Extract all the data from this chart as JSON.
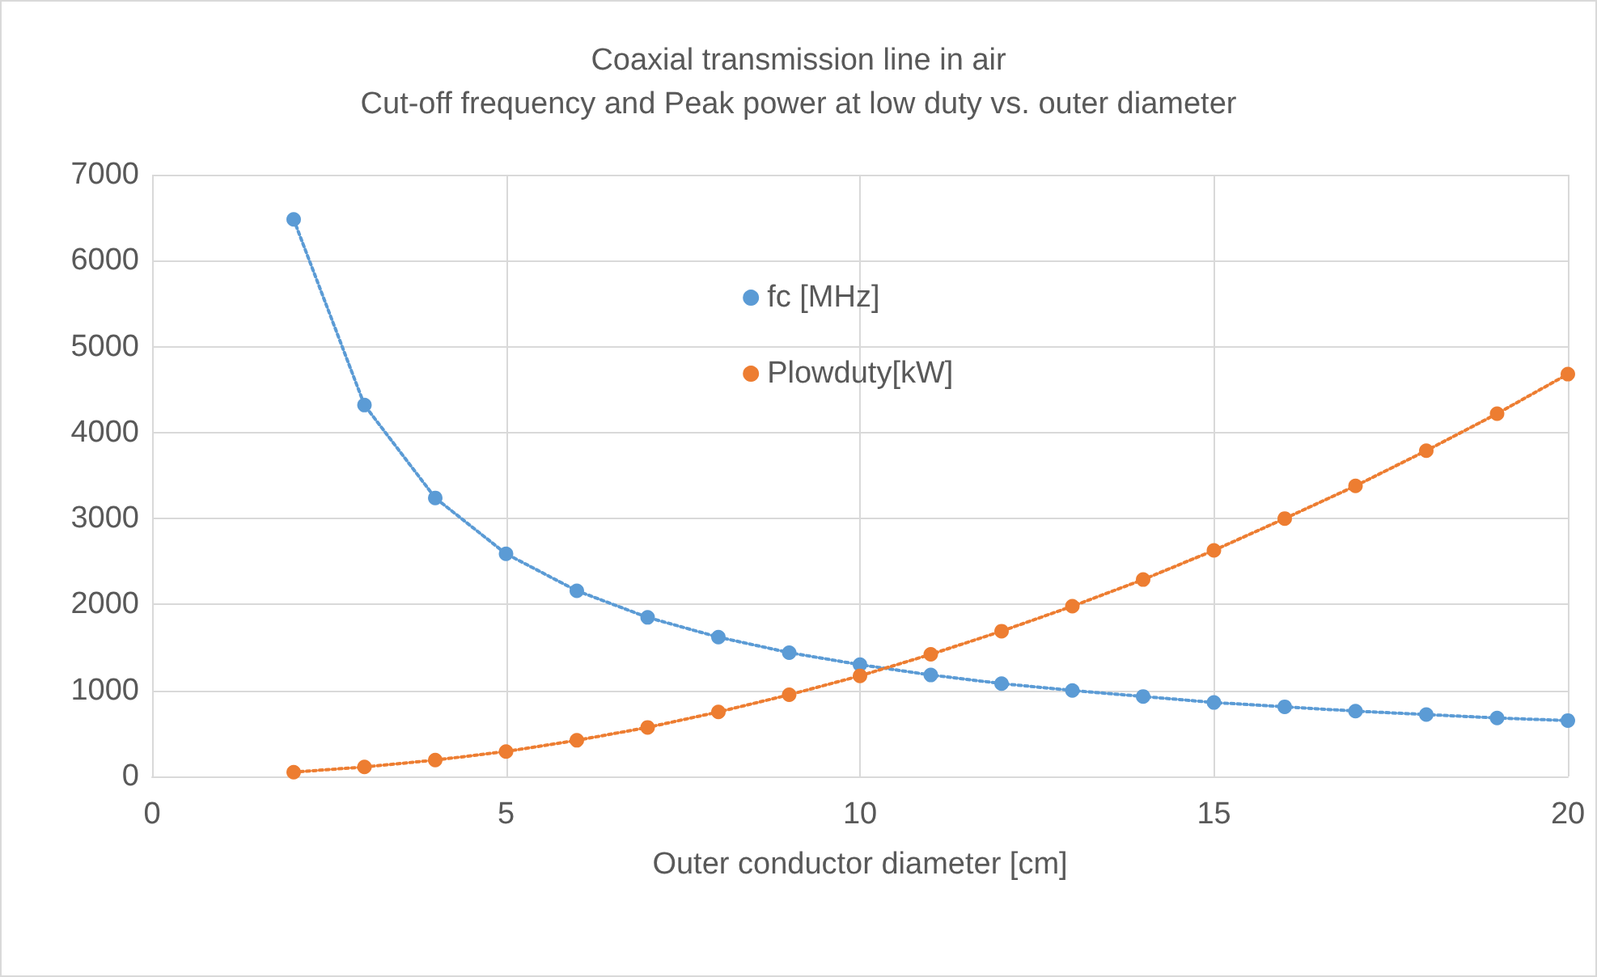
{
  "chart_data": {
    "type": "line",
    "title": "Coaxial transmission line in air",
    "subtitle": "Cut-off frequency and Peak power at low duty vs. outer diameter",
    "xlabel": "Outer conductor diameter [cm]",
    "x": [
      2,
      3,
      4,
      5,
      6,
      7,
      8,
      9,
      10,
      11,
      12,
      13,
      14,
      15,
      16,
      17,
      18,
      19,
      20
    ],
    "series": [
      {
        "name": "fc [MHz]",
        "color": "#5b9bd5",
        "values": [
          6480,
          4320,
          3240,
          2590,
          2160,
          1850,
          1620,
          1440,
          1300,
          1180,
          1080,
          1000,
          930,
          860,
          810,
          760,
          720,
          680,
          650
        ]
      },
      {
        "name": "Plowduty[kW]",
        "color": "#ed7d31",
        "values": [
          50,
          110,
          190,
          290,
          420,
          570,
          750,
          950,
          1170,
          1420,
          1690,
          1980,
          2290,
          2630,
          3000,
          3380,
          3790,
          4220,
          4680
        ]
      }
    ],
    "xlim": [
      0,
      20
    ],
    "xticks": [
      0,
      5,
      10,
      15,
      20
    ],
    "ylim": [
      0,
      7000
    ],
    "yticks": [
      0,
      1000,
      2000,
      3000,
      4000,
      5000,
      6000,
      7000
    ],
    "grid": true,
    "legend": "top",
    "marker": "circle",
    "line_style": "dotted"
  }
}
